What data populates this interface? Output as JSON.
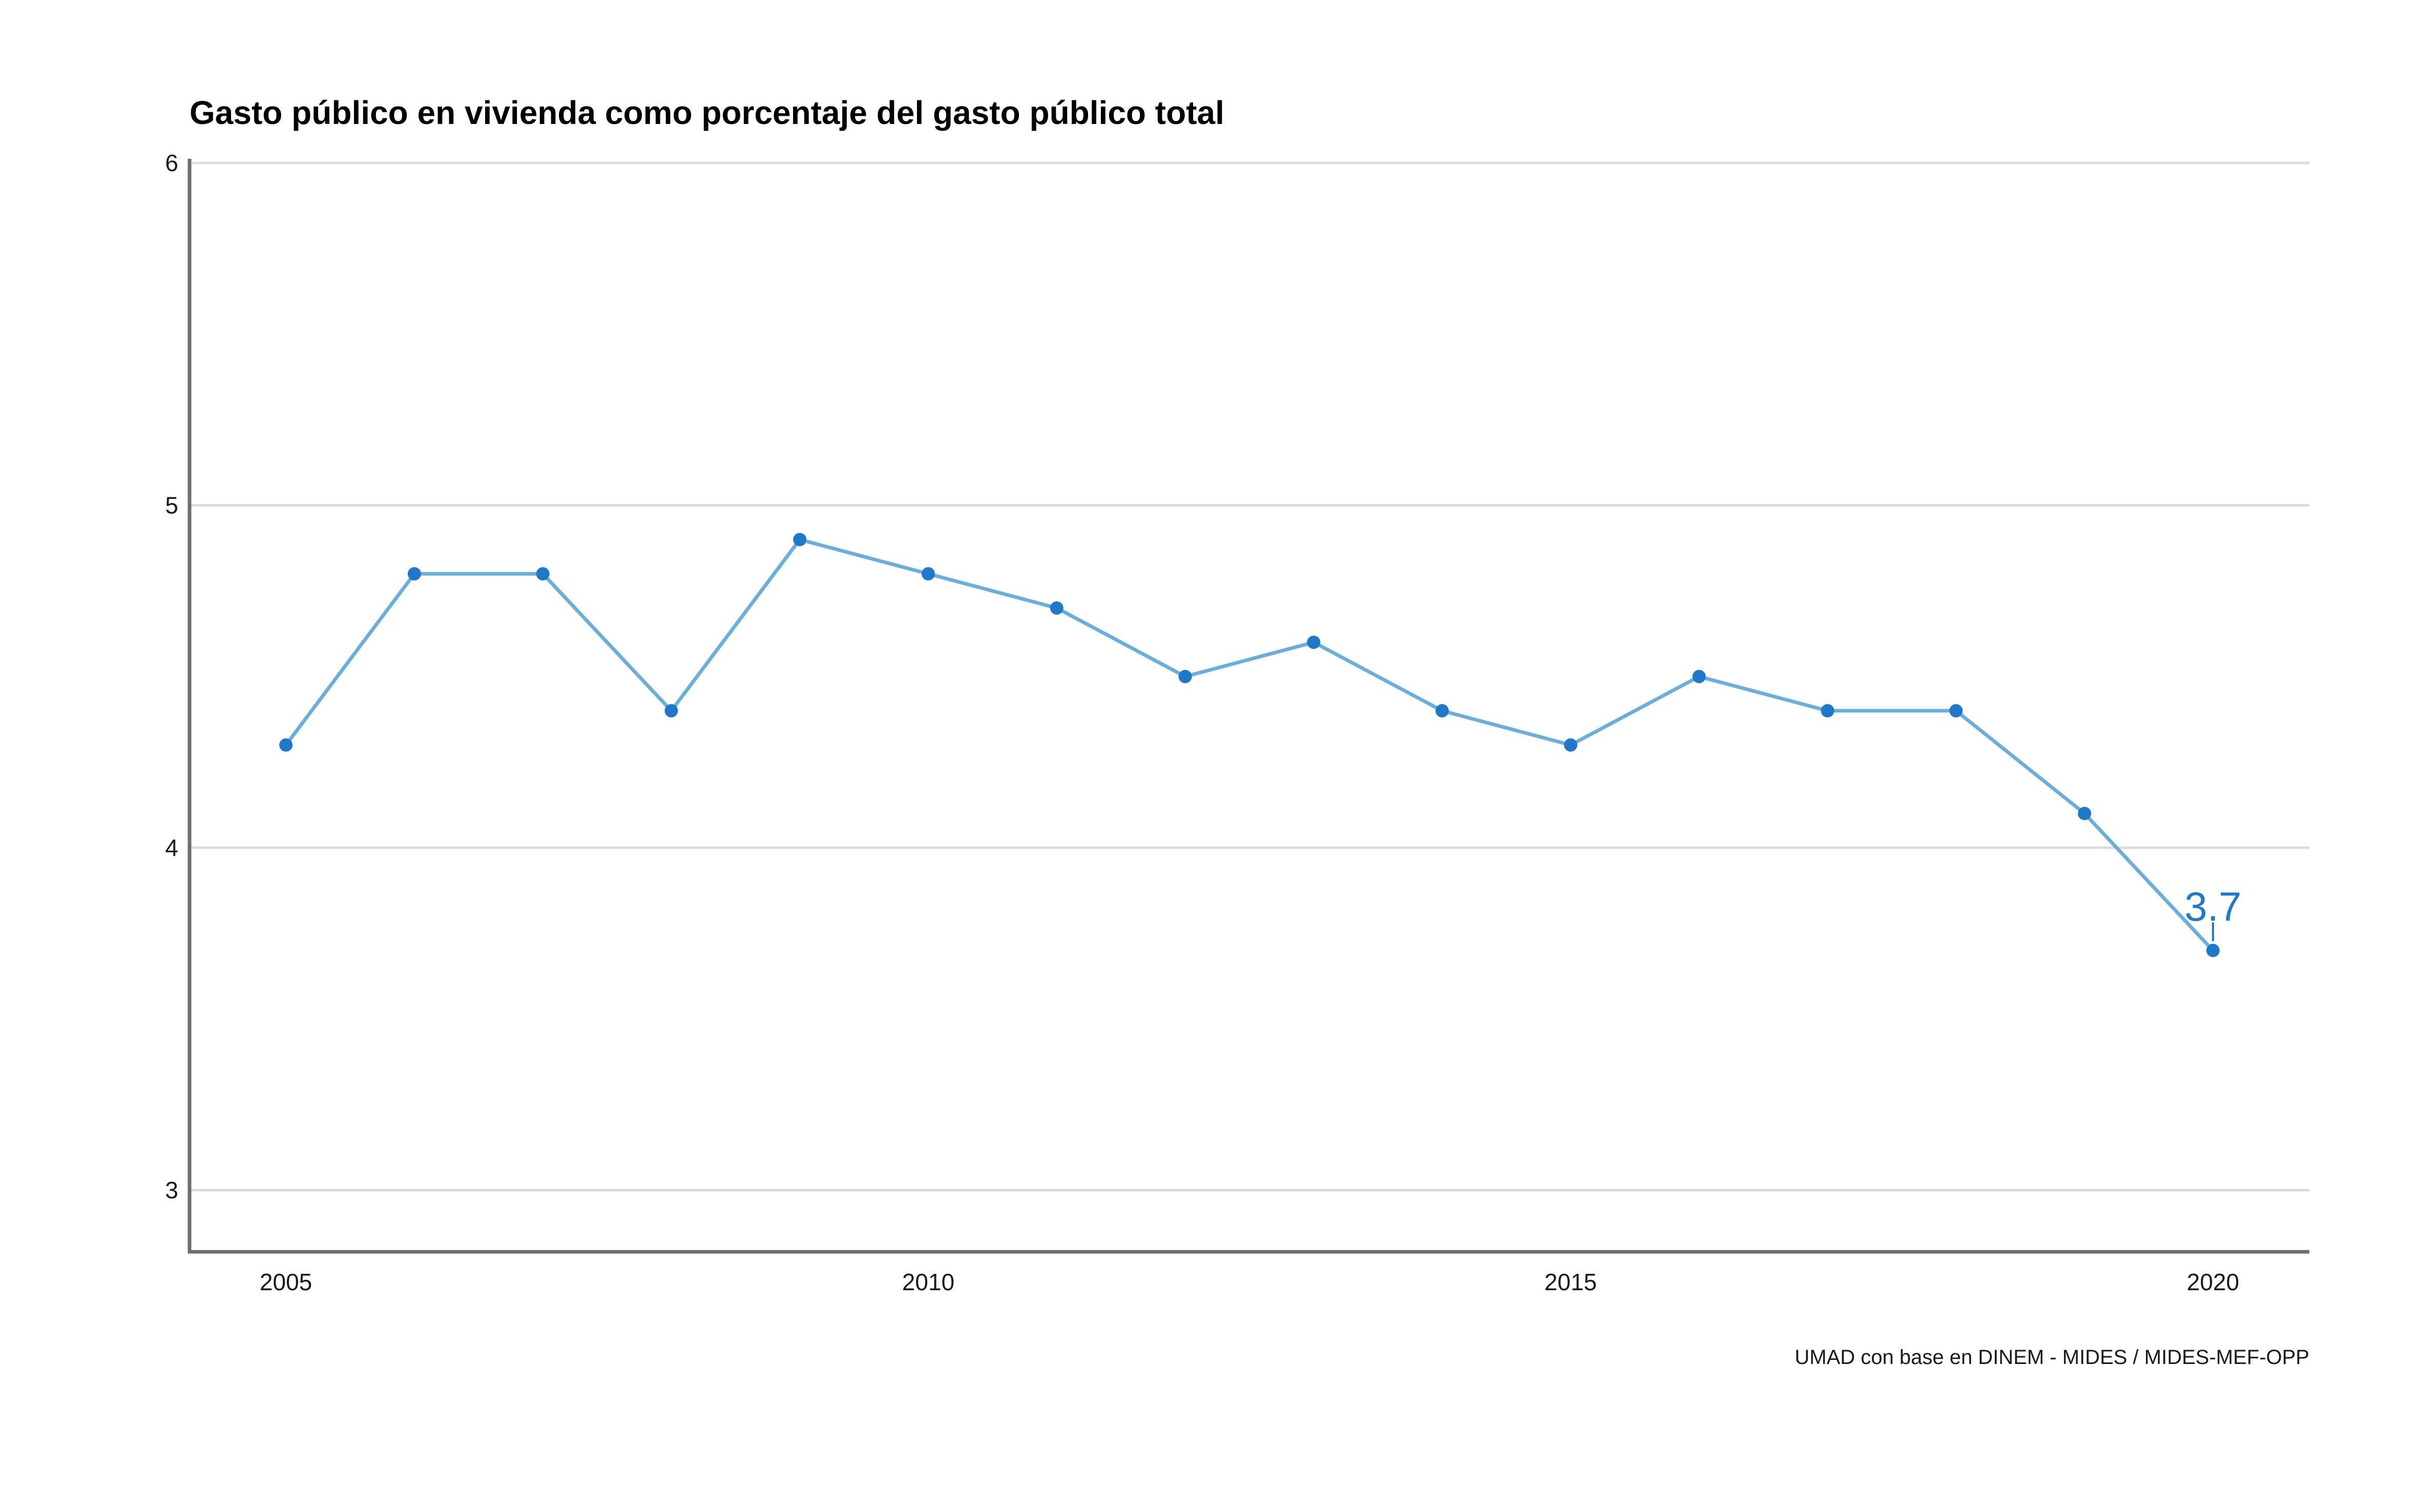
{
  "chart_data": {
    "type": "line",
    "title": "Gasto público en vivienda como porcentaje del gasto público total",
    "caption": "UMAD con base en DINEM - MIDES / MIDES-MEF-OPP",
    "xlabel": "",
    "ylabel": "",
    "x": [
      2005,
      2006,
      2007,
      2008,
      2009,
      2010,
      2011,
      2012,
      2013,
      2014,
      2015,
      2016,
      2017,
      2018,
      2019,
      2020
    ],
    "series": [
      {
        "values": [
          4.3,
          4.8,
          4.8,
          4.4,
          4.9,
          4.8,
          4.7,
          4.5,
          4.6,
          4.4,
          4.3,
          4.5,
          4.4,
          4.4,
          4.1,
          3.7
        ]
      }
    ],
    "xticks": [
      "2005",
      "2010",
      "2015",
      "2020"
    ],
    "yticks": [
      "3",
      "4",
      "5",
      "6"
    ],
    "xlim": [
      2004.25,
      2020.75
    ],
    "ylim": [
      2.82,
      6.0
    ],
    "grid": "horizontal",
    "annotation": {
      "x": 2020,
      "y": 3.7,
      "text": "3.7"
    },
    "colors": {
      "line": "#6aaedc",
      "point": "#1f78c8",
      "label": "#1f78c8"
    }
  }
}
